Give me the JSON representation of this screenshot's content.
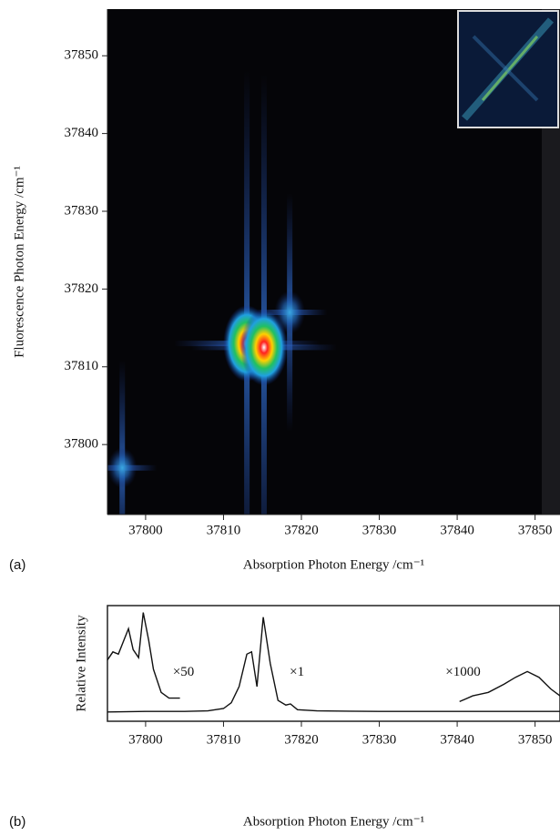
{
  "chart_data": [
    {
      "type": "heatmap",
      "panel_label": "(a)",
      "x_label": "Absorption Photon Energy /cm⁻¹",
      "y_label": "Fluorescence Photon Energy /cm⁻¹",
      "x": [
        37813,
        37815.2,
        37818.5,
        37797
      ],
      "y": [
        37813,
        37812.5,
        37817,
        37797
      ],
      "values": [
        100,
        100,
        35,
        30
      ],
      "xlim": [
        37795.1,
        37853.2
      ],
      "ylim": [
        37791,
        37856
      ],
      "xticks": [
        37800,
        37810,
        37820,
        37830,
        37840,
        37850
      ],
      "yticks": [
        37800,
        37810,
        37820,
        37830,
        37840,
        37850
      ]
    },
    {
      "type": "line",
      "panel_label": "(b)",
      "x_label": "Absorption Photon Energy /cm⁻¹",
      "y_label": "Relative Intensity",
      "xlim": [
        37795.1,
        37853.2
      ],
      "ylim": [
        0,
        100
      ],
      "xticks": [
        37800,
        37810,
        37820,
        37830,
        37840,
        37850
      ],
      "color": "#111111",
      "series": [
        {
          "x": [
            37795.1,
            37800,
            37805,
            37808,
            37810,
            37811,
            37812,
            37813,
            37813.6,
            37814.3,
            37815.1,
            37816,
            37817,
            37818,
            37818.6,
            37819.5,
            37822,
            37830,
            37853.5
          ],
          "values": [
            8,
            8.5,
            8.5,
            9,
            11,
            16,
            30,
            58,
            60,
            30,
            90,
            50,
            18,
            14,
            15,
            10,
            9,
            8.5,
            8.5
          ]
        },
        {
          "x": [
            37795.1,
            37795.8,
            37796.5,
            37797.2,
            37797.8,
            37798.4,
            37799.1,
            37799.7,
            37800.4,
            37801,
            37802,
            37803,
            37804.4
          ],
          "values": [
            53,
            60,
            58,
            70,
            80,
            62,
            55,
            94,
            70,
            45,
            25,
            20,
            20
          ]
        },
        {
          "x": [
            37840.3,
            37842,
            37844,
            37846,
            37847.5,
            37849,
            37850.5,
            37852,
            37853.2
          ],
          "values": [
            17,
            22,
            25,
            32,
            38,
            43,
            38,
            28,
            22
          ]
        }
      ],
      "annotations": [
        {
          "text": "×50",
          "x": 37803.5,
          "y": 42
        },
        {
          "text": "×1",
          "x": 37818.5,
          "y": 42
        },
        {
          "text": "×1000",
          "x": 37838.5,
          "y": 42
        }
      ]
    }
  ]
}
